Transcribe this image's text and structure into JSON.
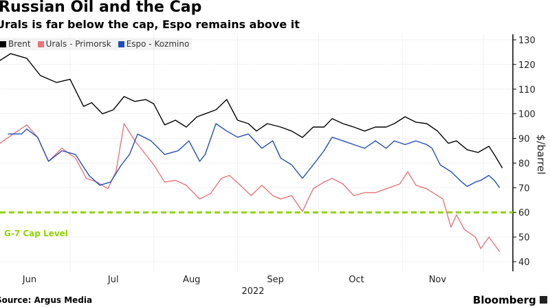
{
  "title": "Russian Oil and the Cap",
  "subtitle": "Urals is far below the cap, Espo remains above it",
  "source": "Source: Argus Media",
  "brand": "Bloomberg",
  "chart_data": {
    "type": "line",
    "title": "Russian Oil and the Cap",
    "xlabel": "2022",
    "ylabel": "$/barrel",
    "ylim": [
      40,
      130
    ],
    "yticks": [
      40,
      50,
      60,
      70,
      80,
      90,
      100,
      110,
      120,
      130
    ],
    "x_unit": "days since Jun 1, 2022",
    "month_ticks": [
      {
        "label": "Jun",
        "day": 15
      },
      {
        "label": "Jul",
        "day": 46
      },
      {
        "label": "Aug",
        "day": 75
      },
      {
        "label": "Sep",
        "day": 106
      },
      {
        "label": "Oct",
        "day": 136
      },
      {
        "label": "Nov",
        "day": 166
      }
    ],
    "month_boundaries": [
      30,
      61,
      92,
      122,
      153,
      183
    ],
    "grid": true,
    "legend": "top-left",
    "reference_line": {
      "label": "G-7 Cap Level",
      "value": 60,
      "color": "#8fd400"
    },
    "series": [
      {
        "name": "Brent",
        "color": "#000000",
        "points": [
          [
            4,
            121.6
          ],
          [
            8,
            124.4
          ],
          [
            14,
            122.5
          ],
          [
            19,
            115.5
          ],
          [
            25,
            112.7
          ],
          [
            30,
            114
          ],
          [
            35,
            103
          ],
          [
            38,
            104.5
          ],
          [
            42,
            100
          ],
          [
            46,
            101.6
          ],
          [
            50,
            107
          ],
          [
            54,
            105
          ],
          [
            58,
            105.8
          ],
          [
            61,
            104
          ],
          [
            65,
            95.5
          ],
          [
            69,
            97.4
          ],
          [
            73,
            94.6
          ],
          [
            77,
            98.8
          ],
          [
            80,
            100
          ],
          [
            84,
            101.6
          ],
          [
            88,
            105.8
          ],
          [
            92,
            97.4
          ],
          [
            96,
            96
          ],
          [
            99,
            93
          ],
          [
            103,
            96
          ],
          [
            108,
            94.6
          ],
          [
            112,
            93
          ],
          [
            116,
            90.4
          ],
          [
            120,
            94.6
          ],
          [
            124,
            94.6
          ],
          [
            127,
            98
          ],
          [
            131,
            96
          ],
          [
            135,
            94.6
          ],
          [
            139,
            93
          ],
          [
            143,
            94.6
          ],
          [
            147,
            94.6
          ],
          [
            150,
            96
          ],
          [
            154,
            98.8
          ],
          [
            158,
            96.6
          ],
          [
            162,
            96
          ],
          [
            166,
            93
          ],
          [
            170,
            88
          ],
          [
            173,
            89
          ],
          [
            177,
            85.4
          ],
          [
            181,
            84.3
          ],
          [
            185,
            86.8
          ],
          [
            187,
            83.5
          ],
          [
            190,
            78
          ]
        ]
      },
      {
        "name": "Urals - Primorsk",
        "color": "#e8757a",
        "points": [
          [
            4,
            88
          ],
          [
            9,
            91.8
          ],
          [
            14,
            95.5
          ],
          [
            18,
            90.5
          ],
          [
            22,
            80.7
          ],
          [
            27,
            86
          ],
          [
            32,
            82
          ],
          [
            36,
            73.8
          ],
          [
            40,
            72.3
          ],
          [
            44,
            69.6
          ],
          [
            47,
            76.5
          ],
          [
            50,
            96
          ],
          [
            54,
            89
          ],
          [
            58,
            83.5
          ],
          [
            61,
            79.3
          ],
          [
            65,
            72.3
          ],
          [
            69,
            73
          ],
          [
            73,
            71
          ],
          [
            78,
            65.4
          ],
          [
            82,
            67.6
          ],
          [
            86,
            73.8
          ],
          [
            89,
            75
          ],
          [
            93,
            71
          ],
          [
            97,
            66.8
          ],
          [
            101,
            71
          ],
          [
            105,
            66.8
          ],
          [
            108,
            65.4
          ],
          [
            112,
            66.8
          ],
          [
            116,
            60.4
          ],
          [
            120,
            69.6
          ],
          [
            124,
            72.3
          ],
          [
            127,
            73.8
          ],
          [
            131,
            71.5
          ],
          [
            135,
            66.8
          ],
          [
            139,
            68
          ],
          [
            143,
            68
          ],
          [
            147,
            69.6
          ],
          [
            152,
            71.5
          ],
          [
            155,
            76.5
          ],
          [
            158,
            71
          ],
          [
            162,
            69.6
          ],
          [
            166,
            66.8
          ],
          [
            168,
            65.4
          ],
          [
            171,
            54
          ],
          [
            173,
            59
          ],
          [
            176,
            53
          ],
          [
            180,
            50
          ],
          [
            182,
            45.3
          ],
          [
            185,
            50
          ],
          [
            189,
            44
          ]
        ]
      },
      {
        "name": "Espo - Kozmino",
        "color": "#1f4fb5",
        "points": [
          [
            7,
            91.8
          ],
          [
            12,
            91.8
          ],
          [
            14,
            93.8
          ],
          [
            18,
            90.5
          ],
          [
            22,
            80.7
          ],
          [
            27,
            85
          ],
          [
            32,
            83.5
          ],
          [
            37,
            75
          ],
          [
            41,
            71
          ],
          [
            45,
            72.3
          ],
          [
            49,
            79.3
          ],
          [
            52,
            83.5
          ],
          [
            55,
            91.8
          ],
          [
            60,
            89
          ],
          [
            65,
            83.5
          ],
          [
            70,
            85
          ],
          [
            74,
            89
          ],
          [
            78,
            80.7
          ],
          [
            80,
            83.5
          ],
          [
            84,
            96
          ],
          [
            88,
            93
          ],
          [
            92,
            90.5
          ],
          [
            96,
            91.8
          ],
          [
            101,
            86
          ],
          [
            105,
            89
          ],
          [
            108,
            82
          ],
          [
            112,
            79.3
          ],
          [
            116,
            73.8
          ],
          [
            120,
            79.3
          ],
          [
            124,
            85
          ],
          [
            127,
            90.5
          ],
          [
            131,
            89
          ],
          [
            135,
            87.5
          ],
          [
            139,
            86
          ],
          [
            143,
            89
          ],
          [
            147,
            86
          ],
          [
            150,
            89
          ],
          [
            154,
            87.5
          ],
          [
            158,
            89
          ],
          [
            162,
            87.5
          ],
          [
            164,
            86
          ],
          [
            167,
            79.3
          ],
          [
            171,
            76.5
          ],
          [
            175,
            72.3
          ],
          [
            177,
            70.5
          ],
          [
            180,
            72.3
          ],
          [
            182,
            73
          ],
          [
            185,
            75
          ],
          [
            187,
            73
          ],
          [
            189,
            70
          ]
        ]
      }
    ]
  }
}
